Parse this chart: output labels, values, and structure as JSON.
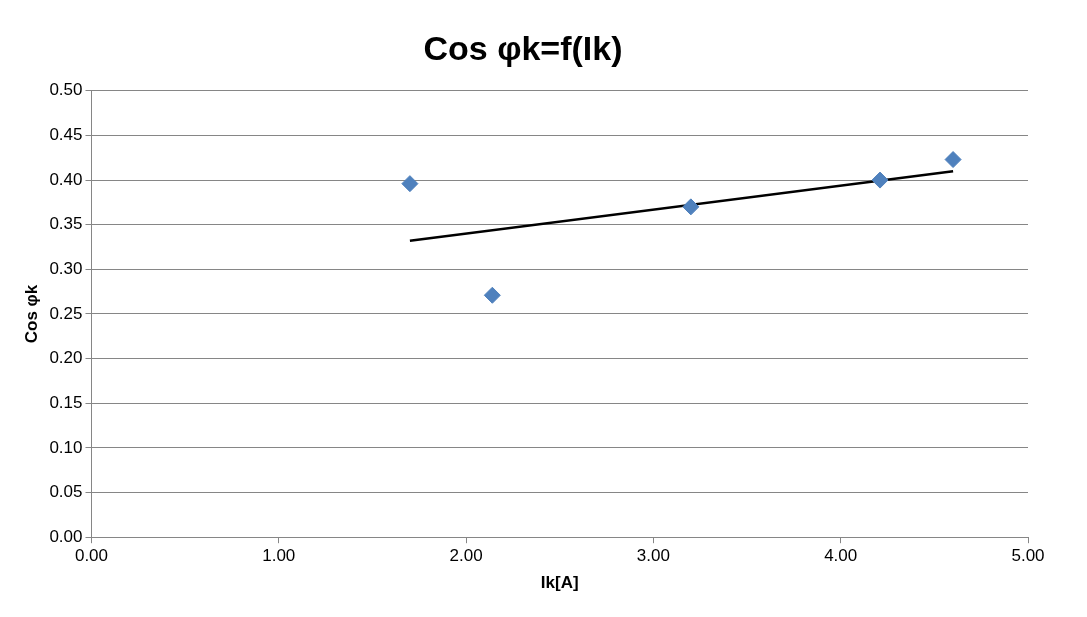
{
  "chart_data": {
    "type": "scatter",
    "title": "Cos φk=f(Ik)",
    "xlabel": "Ik[A]",
    "ylabel": "Cos φk",
    "x": [
      1.7,
      2.14,
      3.2,
      4.21,
      4.6
    ],
    "series": [
      {
        "color": "#4f81bd",
        "values": [
          0.396,
          0.271,
          0.37,
          0.4,
          0.423
        ],
        "marker": "diamond"
      },
      {
        "type": "line",
        "color": "#000000",
        "x": [
          1.7,
          4.6
        ],
        "values": [
          0.332,
          0.41
        ],
        "marker": "none",
        "line_style": "solid"
      }
    ],
    "xlim": [
      0,
      5
    ],
    "xticks": [
      {
        "value": 0,
        "label": "0.00"
      },
      {
        "value": 1,
        "label": "1.00"
      },
      {
        "value": 2,
        "label": "2.00"
      },
      {
        "value": 3,
        "label": "3.00"
      },
      {
        "value": 4,
        "label": "4.00"
      },
      {
        "value": 5,
        "label": "5.00"
      }
    ],
    "ylim": [
      0,
      0.5
    ],
    "yticks": [
      {
        "value": 0,
        "label": "0.00"
      },
      {
        "value": 0.05,
        "label": "0.05"
      },
      {
        "value": 0.1,
        "label": "0.10"
      },
      {
        "value": 0.15,
        "label": "0.15"
      },
      {
        "value": 0.2,
        "label": "0.20"
      },
      {
        "value": 0.25,
        "label": "0.25"
      },
      {
        "value": 0.3,
        "label": "0.30"
      },
      {
        "value": 0.35,
        "label": "0.35"
      },
      {
        "value": 0.4,
        "label": "0.40"
      },
      {
        "value": 0.45,
        "label": "0.45"
      },
      {
        "value": 0.5,
        "label": "0.50"
      }
    ],
    "grid": "y",
    "legend": false
  }
}
